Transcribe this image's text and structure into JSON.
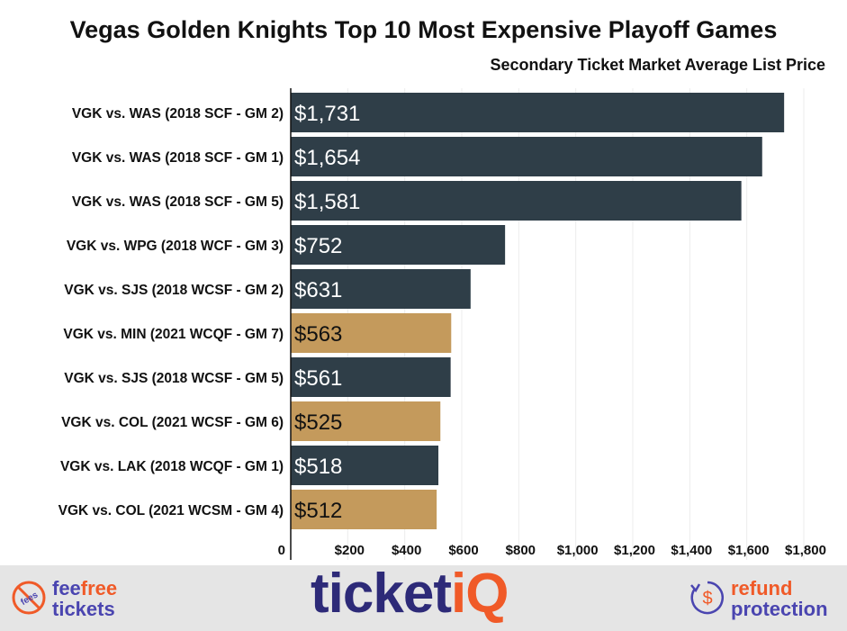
{
  "chart_data": {
    "type": "bar",
    "orientation": "horizontal",
    "title": "Vegas Golden Knights Top 10 Most Expensive Playoff Games",
    "subtitle": "Secondary Ticket Market Average List Price",
    "categories": [
      "VGK vs. WAS (2018 SCF - GM 2)",
      "VGK vs. WAS (2018 SCF - GM 1)",
      "VGK vs. WAS (2018 SCF - GM 5)",
      "VGK vs. WPG (2018 WCF - GM 3)",
      "VGK vs. SJS (2018 WCSF - GM 2)",
      "VGK vs. MIN (2021 WCQF - GM 7)",
      "VGK vs. SJS (2018 WCSF - GM 5)",
      "VGK vs. COL (2021 WCSF - GM 6)",
      "VGK vs. LAK (2018 WCQF - GM 1)",
      "VGK vs. COL (2021 WCSM - GM 4)"
    ],
    "values": [
      1731,
      1654,
      1581,
      752,
      631,
      563,
      561,
      525,
      518,
      512
    ],
    "value_labels": [
      "$1,731",
      "$1,654",
      "$1,581",
      "$752",
      "$631",
      "$563",
      "$561",
      "$525",
      "$518",
      "$512"
    ],
    "season": [
      "2018",
      "2018",
      "2018",
      "2018",
      "2018",
      "2021",
      "2018",
      "2021",
      "2018",
      "2021"
    ],
    "colors": {
      "2018": "#2f3e48",
      "2021": "#c49a5c"
    },
    "xlim": [
      0,
      1820
    ],
    "xticks": [
      0,
      200,
      400,
      600,
      800,
      1000,
      1200,
      1400,
      1600,
      1800
    ],
    "xtick_labels": [
      "0",
      "$200",
      "$400",
      "$600",
      "$800",
      "$1,000",
      "$1,200",
      "$1,400",
      "$1,600",
      "$1,800"
    ],
    "grid": true,
    "xlabel": "",
    "ylabel": ""
  },
  "footer": {
    "feefree_a": "fee",
    "feefree_b": "free",
    "feefree_c": "tickets",
    "fees_icon_text": "fees",
    "logo_a": "ticket",
    "logo_b": "iQ",
    "refund_a": "refund",
    "refund_b": "protection",
    "dollar": "$"
  }
}
